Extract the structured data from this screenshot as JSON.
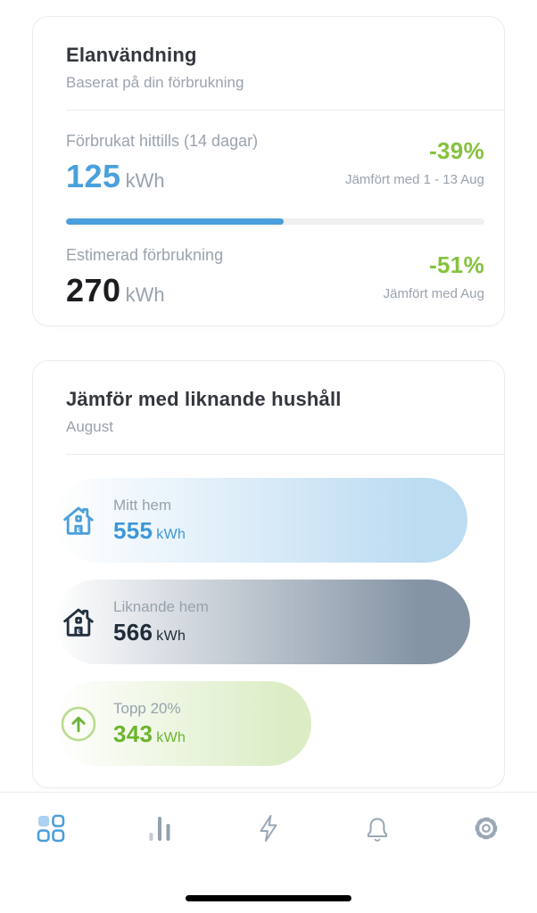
{
  "theme": {
    "accent_blue": "#4aa0dc",
    "accent_green": "#85c23d",
    "text_dark": "#33373d",
    "text_gray": "#9aa3ad",
    "slate_dark": "#22303e",
    "card_border": "#ececec"
  },
  "usage_card": {
    "title": "Elanvändning",
    "subtitle": "Baserat på din förbrukning",
    "consumed": {
      "label": "Förbrukat hittills (14 dagar)",
      "value": "125",
      "unit": "kWh",
      "delta": "-39%",
      "compare": "Jämfört med 1 - 13 Aug",
      "progress_pct": 52
    },
    "estimated": {
      "label": "Estimerad förbrukning",
      "value": "270",
      "unit": "kWh",
      "delta": "-51%",
      "compare": "Jämfört med Aug"
    }
  },
  "comparison_card": {
    "title": "Jämför med liknande hushåll",
    "subtitle": "August",
    "bars": [
      {
        "id": "my-home",
        "label": "Mitt hem",
        "value": "555",
        "unit": "kWh",
        "width_pct": 96.5,
        "color_end": "#bcdcf2",
        "value_color": "#3e97d8",
        "icon": "house-icon-blue"
      },
      {
        "id": "similar-home",
        "label": "Liknande hem",
        "value": "566",
        "unit": "kWh",
        "width_pct": 97,
        "color_end": "#8494a5",
        "value_color": "#202c38",
        "icon": "house-icon-dark"
      },
      {
        "id": "top-20",
        "label": "Topp 20%",
        "value": "343",
        "unit": "kWh",
        "width_pct": 60,
        "color_end": "#dcedc6",
        "value_color": "#6cb52f",
        "icon": "arrow-up-circle-icon"
      }
    ]
  },
  "nav": {
    "items": [
      {
        "id": "dashboard",
        "icon": "grid-icon",
        "active": true
      },
      {
        "id": "statistics",
        "icon": "bar-chart-icon",
        "active": false
      },
      {
        "id": "energy",
        "icon": "lightning-icon",
        "active": false
      },
      {
        "id": "notifications",
        "icon": "bell-icon",
        "active": false
      },
      {
        "id": "settings",
        "icon": "gear-icon",
        "active": false
      }
    ]
  }
}
